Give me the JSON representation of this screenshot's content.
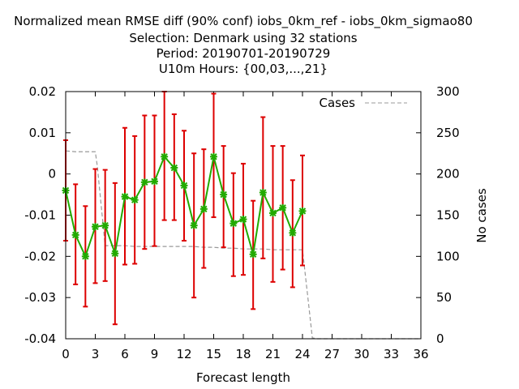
{
  "chart_data": {
    "type": "line",
    "title_lines": [
      "Normalized mean RMSE diff (90% conf) iobs_0km_ref - iobs_0km_sigmao80",
      "Selection: Denmark using    32 stations",
      "Period: 20190701-20190729",
      "U10m   Hours: {00,03,...,21}"
    ],
    "xlabel": "Forecast length",
    "ylabel": "",
    "y2label": "No cases",
    "xlim": [
      0,
      36
    ],
    "ylim": [
      -0.04,
      0.02
    ],
    "y2lim": [
      0,
      300
    ],
    "x_ticks": [
      0,
      3,
      6,
      9,
      12,
      15,
      18,
      21,
      24,
      27,
      30,
      33,
      36
    ],
    "y_ticks": [
      -0.04,
      -0.03,
      -0.02,
      -0.01,
      0,
      0.01,
      0.02
    ],
    "y_tick_labels": [
      "-0.04",
      "-0.03",
      "-0.02",
      "-0.01",
      "0",
      "0.01",
      "0.02"
    ],
    "y2_ticks": [
      0,
      50,
      100,
      150,
      200,
      250,
      300
    ],
    "grid": false,
    "legend_position": "top-right",
    "series": [
      {
        "kind": "mean_with_errorbars",
        "color": "#22aa00",
        "marker_color": "#22aa00",
        "errorbar_color": "#dd0000",
        "x": [
          0,
          1,
          2,
          3,
          4,
          5,
          6,
          7,
          8,
          9,
          10,
          11,
          12,
          13,
          14,
          15,
          16,
          17,
          18,
          19,
          20,
          21,
          22,
          23,
          24
        ],
        "y": [
          -0.004,
          -0.0148,
          -0.02,
          -0.0128,
          -0.0125,
          -0.0193,
          -0.0055,
          -0.0063,
          -0.002,
          -0.0018,
          0.0042,
          0.0015,
          -0.0028,
          -0.0125,
          -0.0085,
          0.0042,
          -0.005,
          -0.012,
          -0.011,
          -0.0195,
          -0.0045,
          -0.0095,
          -0.0082,
          -0.0143,
          -0.009
        ],
        "lower": [
          -0.0162,
          -0.0268,
          -0.0322,
          -0.0265,
          -0.026,
          -0.0365,
          -0.022,
          -0.0218,
          -0.0182,
          -0.0175,
          -0.0112,
          -0.0112,
          -0.0162,
          -0.03,
          -0.0228,
          -0.0105,
          -0.0178,
          -0.0248,
          -0.0245,
          -0.0328,
          -0.0205,
          -0.0262,
          -0.0232,
          -0.0275,
          -0.0222
        ],
        "upper": [
          0.0082,
          -0.0025,
          -0.0078,
          0.0012,
          0.001,
          -0.0022,
          0.0112,
          0.0092,
          0.0142,
          0.0142,
          0.02,
          0.0145,
          0.0105,
          0.005,
          0.006,
          0.0195,
          0.0068,
          0.0002,
          0.0025,
          -0.0065,
          0.0138,
          0.0068,
          0.0068,
          -0.0015,
          0.0045
        ]
      },
      {
        "name": "Cases",
        "axis": "y2",
        "kind": "dashed_line",
        "color": "#999999",
        "x": [
          0,
          1,
          2,
          3,
          3.2,
          4,
          5,
          6,
          7,
          8,
          9,
          10,
          11,
          12,
          13,
          14,
          15,
          16,
          17,
          18,
          19,
          20,
          21,
          22,
          23,
          24,
          24.5,
          25,
          25.5,
          26,
          27,
          28,
          29,
          30,
          31,
          32,
          33,
          34,
          35,
          36
        ],
        "values": [
          228,
          227,
          227,
          227,
          210,
          113,
          113,
          113,
          112,
          112,
          112,
          112,
          112,
          112,
          112,
          111,
          111,
          110,
          110,
          109,
          109,
          109,
          108,
          108,
          108,
          108,
          55,
          1,
          0,
          0,
          0,
          0,
          0,
          0,
          0,
          0,
          0,
          0,
          0,
          0
        ]
      }
    ]
  }
}
